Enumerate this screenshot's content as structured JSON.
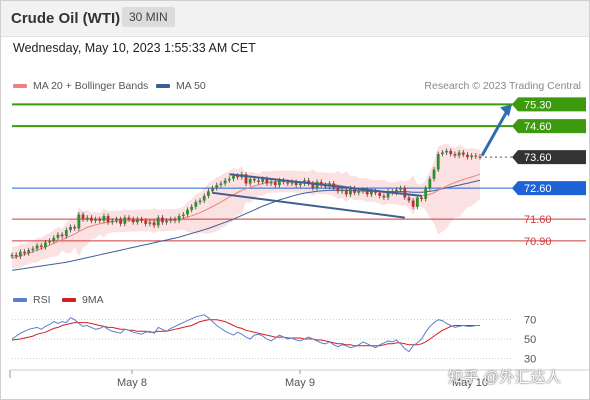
{
  "header": {
    "title": "Crude Oil (WTI)",
    "timeframe": "30 MIN"
  },
  "datetime": "Wednesday, May 10, 2023 1:55:33 AM CET",
  "legend": {
    "ma20": "MA 20 + Bollinger Bands",
    "ma50": "MA 50",
    "credit": "Research © 2023 Trading Central"
  },
  "rsi_legend": {
    "rsi": "RSI",
    "ma9": "9MA"
  },
  "watermark": "知乎 @外汇达人",
  "colors": {
    "accent_green": "#3c9a0e",
    "current_price": "#333333",
    "pivot_blue": "#1e63d6",
    "support_red": "#d03a3a",
    "ma20": "#f08080",
    "ma50": "#3a5f9a",
    "rsi": "#5b7fd0",
    "rsi_ma": "#d02020",
    "arrow": "#2f6db0"
  },
  "chart_data": [
    {
      "type": "candlestick",
      "x_ticks": [
        "May 8",
        "May 9",
        "May 10"
      ],
      "ylim": [
        69.8,
        75.7
      ],
      "levels": [
        {
          "value": 75.3,
          "label": "75.30",
          "role": "resistance"
        },
        {
          "value": 74.6,
          "label": "74.60",
          "role": "resistance"
        },
        {
          "value": 73.6,
          "label": "73.60",
          "role": "current"
        },
        {
          "value": 72.6,
          "label": "72.60",
          "role": "pivot"
        },
        {
          "value": 71.6,
          "label": "71.60",
          "role": "support"
        },
        {
          "value": 70.9,
          "label": "70.90",
          "role": "support"
        }
      ],
      "close": [
        70.45,
        70.4,
        70.55,
        70.5,
        70.6,
        70.65,
        70.75,
        70.7,
        70.85,
        70.9,
        71.0,
        71.1,
        71.05,
        71.25,
        71.35,
        71.3,
        71.75,
        71.6,
        71.65,
        71.55,
        71.6,
        71.55,
        71.7,
        71.5,
        71.55,
        71.6,
        71.45,
        71.65,
        71.6,
        71.5,
        71.6,
        71.55,
        71.45,
        71.5,
        71.4,
        71.65,
        71.5,
        71.55,
        71.6,
        71.55,
        71.7,
        71.75,
        71.9,
        72.0,
        72.15,
        72.2,
        72.35,
        72.5,
        72.6,
        72.7,
        72.75,
        72.85,
        72.9,
        73.0,
        72.95,
        73.05,
        72.75,
        72.9,
        72.85,
        72.8,
        72.9,
        72.75,
        72.8,
        72.7,
        72.85,
        72.8,
        72.75,
        72.8,
        72.7,
        72.75,
        72.85,
        72.75,
        72.6,
        72.8,
        72.7,
        72.65,
        72.75,
        72.6,
        72.5,
        72.55,
        72.4,
        72.6,
        72.45,
        72.5,
        72.55,
        72.4,
        72.5,
        72.45,
        72.35,
        72.3,
        72.5,
        72.45,
        72.55,
        72.6,
        72.3,
        72.2,
        72.0,
        72.3,
        72.25,
        72.6,
        72.9,
        73.2,
        73.7,
        73.75,
        73.8,
        73.7,
        73.65,
        73.75,
        73.68,
        73.6,
        73.65,
        73.62,
        73.6
      ],
      "ma20": [
        70.35,
        70.38,
        70.42,
        70.46,
        70.5,
        70.55,
        70.6,
        70.65,
        70.7,
        70.76,
        70.82,
        70.88,
        70.94,
        71.0,
        71.06,
        71.12,
        71.2,
        71.27,
        71.33,
        71.38,
        71.42,
        71.45,
        71.48,
        71.5,
        71.52,
        71.53,
        71.53,
        71.54,
        71.55,
        71.55,
        71.56,
        71.56,
        71.56,
        71.56,
        71.55,
        71.56,
        71.56,
        71.57,
        71.57,
        71.58,
        71.6,
        71.63,
        71.67,
        71.71,
        71.76,
        71.81,
        71.87,
        71.94,
        72.01,
        72.08,
        72.15,
        72.23,
        72.31,
        72.39,
        72.46,
        72.53,
        72.58,
        72.63,
        72.67,
        72.71,
        72.75,
        72.78,
        72.8,
        72.81,
        72.82,
        72.82,
        72.82,
        72.82,
        72.81,
        72.8,
        72.8,
        72.79,
        72.78,
        72.77,
        72.76,
        72.75,
        72.74,
        72.72,
        72.7,
        72.68,
        72.65,
        72.63,
        72.6,
        72.58,
        72.56,
        72.54,
        72.52,
        72.5,
        72.48,
        72.46,
        72.45,
        72.44,
        72.44,
        72.44,
        72.43,
        72.41,
        72.38,
        72.37,
        72.36,
        72.37,
        72.4,
        72.45,
        72.53,
        72.6,
        72.67,
        72.73,
        72.78,
        72.83,
        72.88,
        72.92,
        72.96,
        73.0,
        73.05
      ],
      "ma50": [
        69.95,
        69.97,
        69.99,
        70.01,
        70.03,
        70.05,
        70.07,
        70.09,
        70.11,
        70.13,
        70.15,
        70.17,
        70.19,
        70.21,
        70.24,
        70.27,
        70.3,
        70.33,
        70.36,
        70.39,
        70.42,
        70.45,
        70.48,
        70.51,
        70.54,
        70.57,
        70.6,
        70.63,
        70.66,
        70.69,
        70.72,
        70.75,
        70.78,
        70.81,
        70.84,
        70.87,
        70.9,
        70.93,
        70.96,
        70.99,
        71.02,
        71.06,
        71.1,
        71.14,
        71.18,
        71.22,
        71.26,
        71.3,
        71.35,
        71.4,
        71.45,
        71.5,
        71.55,
        71.6,
        71.66,
        71.72,
        71.78,
        71.84,
        71.9,
        71.96,
        72.02,
        72.07,
        72.12,
        72.17,
        72.22,
        72.26,
        72.3,
        72.34,
        72.38,
        72.41,
        72.44,
        72.46,
        72.48,
        72.5,
        72.51,
        72.52,
        72.53,
        72.53,
        72.53,
        72.53,
        72.53,
        72.52,
        72.52,
        72.51,
        72.51,
        72.5,
        72.5,
        72.5,
        72.49,
        72.49,
        72.49,
        72.49,
        72.49,
        72.49,
        72.49,
        72.48,
        72.47,
        72.47,
        72.47,
        72.48,
        72.5,
        72.52,
        72.55,
        72.58,
        72.61,
        72.64,
        72.67,
        72.7,
        72.73,
        72.76,
        72.79,
        72.82,
        72.85
      ],
      "channel": {
        "upper": [
          {
            "bar": 52,
            "value": 73.05
          },
          {
            "bar": 98,
            "value": 72.35
          }
        ],
        "lower": [
          {
            "bar": 48,
            "value": 72.45
          },
          {
            "bar": 94,
            "value": 71.65
          }
        ]
      },
      "projection": {
        "from": 73.65,
        "to": 75.3
      }
    },
    {
      "type": "line",
      "name": "RSI",
      "ylim": [
        20,
        80
      ],
      "y_ticks": [
        70,
        50,
        30
      ],
      "series": [
        {
          "name": "RSI",
          "values": [
            50,
            53,
            56,
            58,
            60,
            61,
            62,
            60,
            63,
            65,
            68,
            66,
            68,
            67,
            72,
            70,
            66,
            63,
            64,
            62,
            60,
            61,
            63,
            60,
            58,
            57,
            56,
            60,
            59,
            57,
            56,
            55,
            57,
            58,
            56,
            62,
            60,
            58,
            61,
            63,
            65,
            67,
            69,
            71,
            73,
            74,
            75,
            72,
            68,
            64,
            61,
            58,
            56,
            54,
            57,
            55,
            52,
            50,
            54,
            55,
            53,
            50,
            48,
            51,
            54,
            52,
            50,
            51,
            49,
            48,
            50,
            52,
            50,
            48,
            46,
            45,
            47,
            44,
            42,
            44,
            43,
            41,
            42,
            44,
            47,
            45,
            43,
            41,
            44,
            46,
            48,
            47,
            49,
            45,
            40,
            37,
            43,
            46,
            50,
            57,
            63,
            67,
            70,
            69,
            66,
            64,
            62,
            63,
            64,
            63,
            63,
            64,
            64
          ]
        },
        {
          "name": "9MA",
          "values": [
            49,
            49.5,
            50,
            51,
            52,
            53,
            55,
            56,
            57,
            59,
            61,
            62,
            64,
            65,
            66,
            67,
            67,
            67,
            67,
            66,
            65,
            64,
            63,
            62,
            62,
            61,
            60,
            60,
            59,
            59,
            58,
            58,
            58,
            57,
            57,
            58,
            58,
            58,
            59,
            60,
            61,
            62,
            63,
            64,
            66,
            68,
            69,
            70,
            70,
            70,
            69,
            68,
            66,
            64,
            62,
            61,
            59,
            58,
            57,
            56,
            55,
            54,
            53,
            52,
            52,
            52,
            51,
            51,
            51,
            51,
            50,
            50,
            50,
            49,
            49,
            48,
            47,
            46,
            45,
            45,
            44,
            44,
            43,
            43,
            43,
            43,
            43,
            43,
            43,
            44,
            45,
            45,
            46,
            46,
            45,
            44,
            44,
            44,
            45,
            47,
            50,
            53,
            56,
            59,
            61,
            63,
            64,
            64,
            64,
            64,
            64,
            64,
            64
          ]
        }
      ]
    }
  ]
}
